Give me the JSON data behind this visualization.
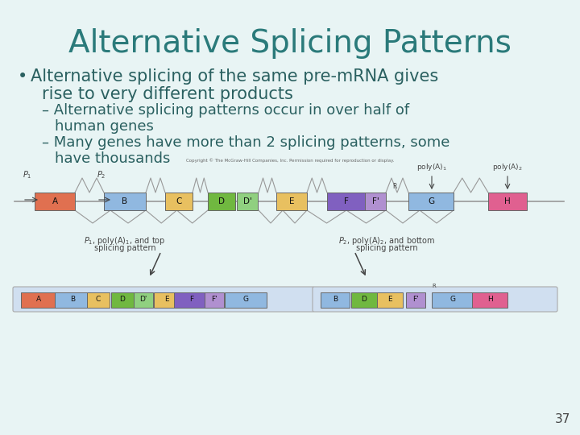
{
  "title": "Alternative Splicing Patterns",
  "title_color": "#2a7a7a",
  "bg_color": "#e8f4f4",
  "bullet_text_line1": "Alternative splicing of the same pre-mRNA gives",
  "bullet_text_line2": "rise to very different products",
  "sub1_line1": "Alternative splicing patterns occur in over half of",
  "sub1_line2": "human genes",
  "sub2_line1": "Many genes have more than 2 splicing patterns, some",
  "sub2_line2": "have thousands",
  "text_color": "#2a6060",
  "page_number": "37",
  "copyright": "Copyright © The McGraw-Hill Companies, Inc. Permission required for reproduction or display.",
  "top_row_boxes": [
    {
      "label": "A",
      "color": "#e07050"
    },
    {
      "label": "B",
      "color": "#90b8e0"
    },
    {
      "label": "C",
      "color": "#e8c060"
    },
    {
      "label": "D",
      "color": "#70b840"
    },
    {
      "label": "D'",
      "color": "#90d080"
    },
    {
      "label": "E",
      "color": "#e8c060"
    },
    {
      "label": "F",
      "color": "#8060c0"
    },
    {
      "label": "F'",
      "color": "#b090d0"
    },
    {
      "label": "G",
      "color": "#90b8e0"
    },
    {
      "label": "H",
      "color": "#e06090"
    }
  ],
  "bot_row1_boxes": [
    {
      "label": "A",
      "color": "#e07050"
    },
    {
      "label": "B",
      "color": "#90b8e0"
    },
    {
      "label": "C",
      "color": "#e8c060"
    },
    {
      "label": "D",
      "color": "#70b840"
    },
    {
      "label": "D'",
      "color": "#90d080"
    },
    {
      "label": "E",
      "color": "#e8c060"
    },
    {
      "label": "F",
      "color": "#8060c0"
    },
    {
      "label": "F'",
      "color": "#b090d0"
    },
    {
      "label": "G",
      "color": "#90b8e0"
    }
  ],
  "bot_row2_boxes": [
    {
      "label": "B",
      "color": "#90b8e0"
    },
    {
      "label": "D",
      "color": "#70b840"
    },
    {
      "label": "E",
      "color": "#e8c060"
    },
    {
      "label": "F'",
      "color": "#b090d0"
    },
    {
      "label": "G",
      "color": "#90b8e0"
    },
    {
      "label": "H",
      "color": "#e06090"
    }
  ]
}
